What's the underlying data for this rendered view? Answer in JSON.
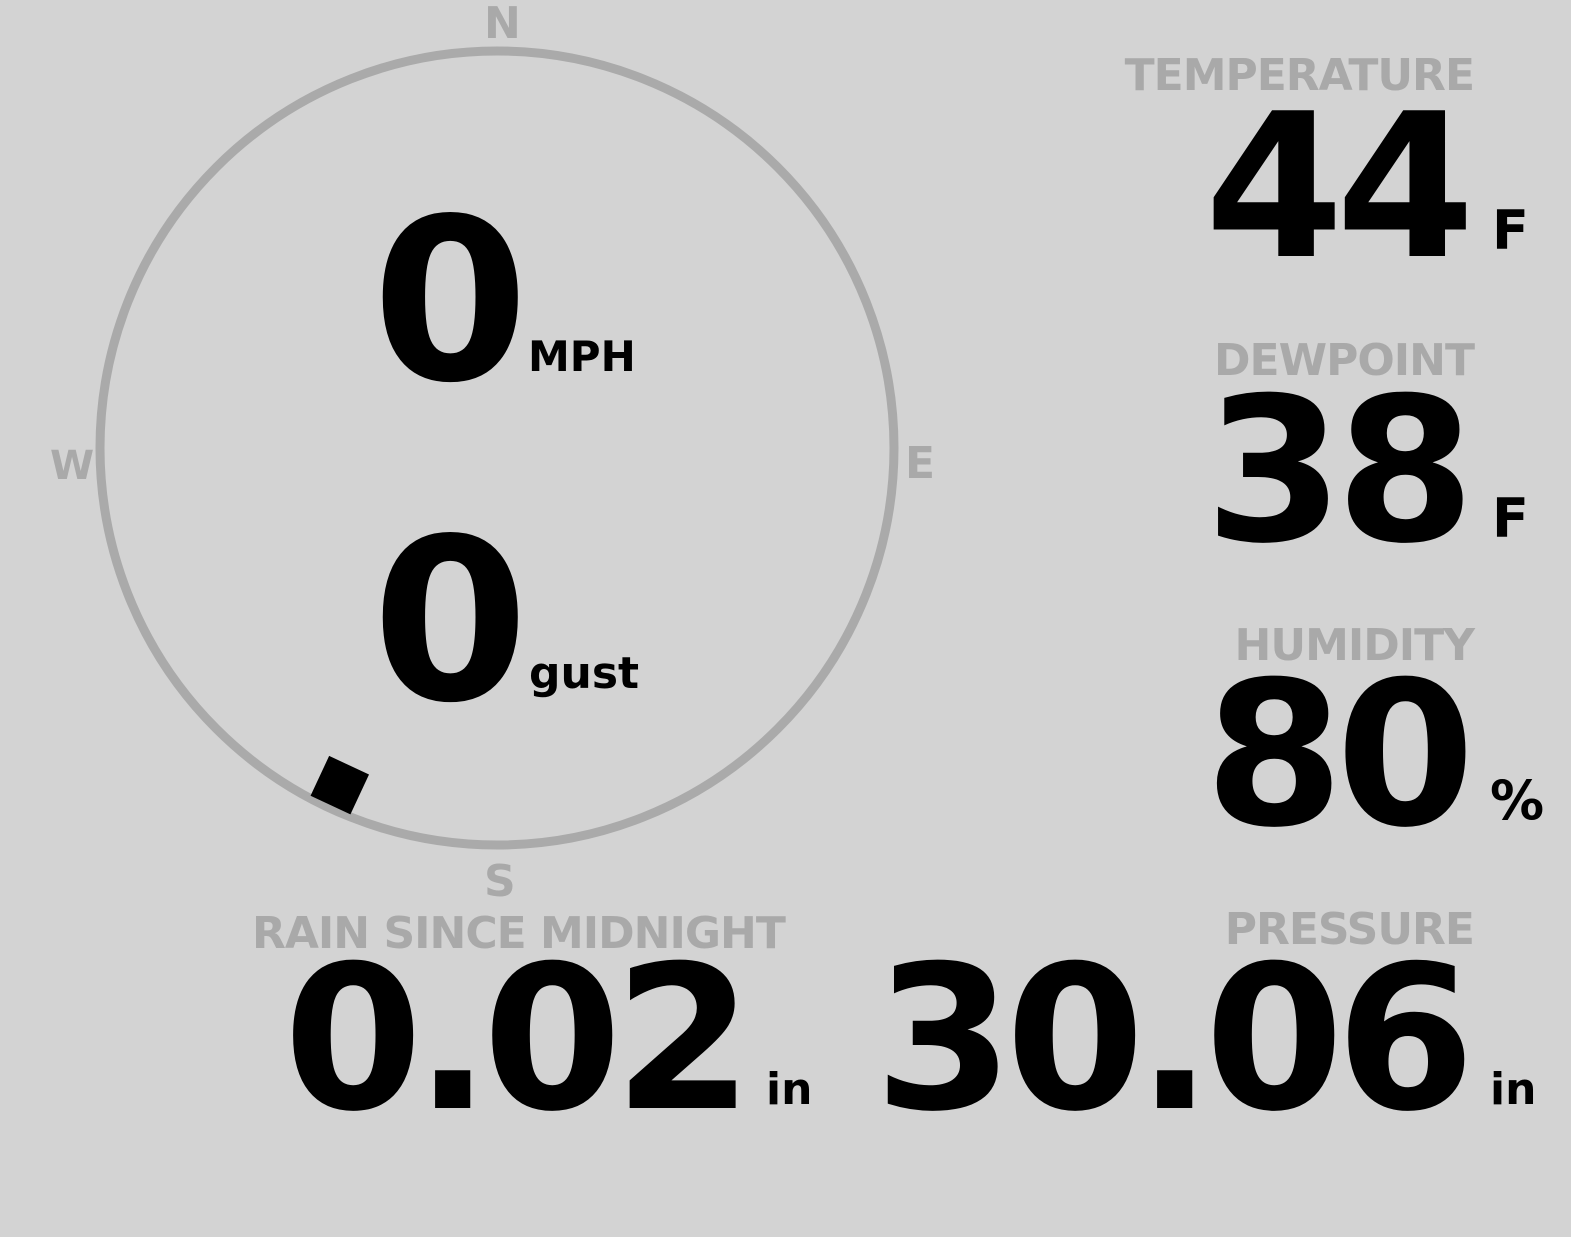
{
  "wind": {
    "speed": "0",
    "speed_unit": "MPH",
    "gust": "0",
    "gust_unit": "gust",
    "direction_deg": 205,
    "cardinals": {
      "n": "N",
      "e": "E",
      "s": "S",
      "w": "W"
    }
  },
  "temperature": {
    "label": "TEMPERATURE",
    "value": "44",
    "unit": "F"
  },
  "dewpoint": {
    "label": "DEWPOINT",
    "value": "38",
    "unit": "F"
  },
  "humidity": {
    "label": "HUMIDITY",
    "value": "80",
    "unit": "%"
  },
  "rain": {
    "label": "RAIN SINCE MIDNIGHT",
    "value": "0.02",
    "unit": "in"
  },
  "pressure": {
    "label": "PRESSURE",
    "value": "30.06",
    "unit": "in"
  },
  "colors": {
    "background": "#d3d3d3",
    "label": "#a9a9a9",
    "ring": "#aaaaaa",
    "value": "#000000"
  }
}
